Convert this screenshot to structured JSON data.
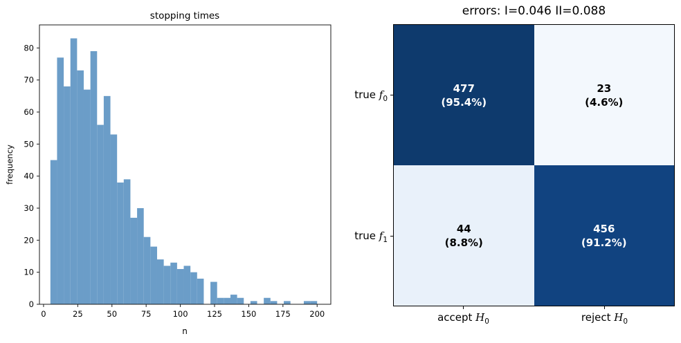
{
  "chart_data": [
    {
      "type": "bar",
      "subtype": "histogram",
      "title": "stopping times",
      "xlabel": "n",
      "ylabel": "frequency",
      "bar_color": "#6b9dc8",
      "xticks": [
        0,
        25,
        50,
        75,
        100,
        125,
        150,
        175,
        200
      ],
      "yticks": [
        0,
        10,
        20,
        30,
        40,
        50,
        60,
        70,
        80
      ],
      "xlim": [
        -3,
        210
      ],
      "ylim": [
        0,
        87.2
      ],
      "bins": {
        "start": 5,
        "width": 4.875,
        "counts": [
          45,
          77,
          68,
          83,
          73,
          67,
          79,
          56,
          65,
          53,
          38,
          39,
          27,
          30,
          21,
          18,
          14,
          12,
          13,
          11,
          12,
          10,
          8,
          0,
          7,
          2,
          2,
          3,
          2,
          0,
          1,
          0,
          2,
          1,
          0,
          1,
          0,
          0,
          1,
          1
        ]
      }
    },
    {
      "type": "heatmap",
      "title": "errors: I=0.046 II=0.088",
      "row_labels": [
        {
          "prefix": "true ",
          "symbol": "f",
          "subscript": "0"
        },
        {
          "prefix": "true ",
          "symbol": "f",
          "subscript": "1"
        }
      ],
      "col_labels": [
        {
          "prefix": "accept ",
          "symbol": "H",
          "subscript": "0"
        },
        {
          "prefix": "reject ",
          "symbol": "H",
          "subscript": "0"
        }
      ],
      "values": [
        [
          477,
          23
        ],
        [
          44,
          456
        ]
      ],
      "percent_labels": [
        [
          "(95.4%)",
          "(4.6%)"
        ],
        [
          "(8.8%)",
          "(91.2%)"
        ]
      ],
      "cell_colors": [
        [
          "#0e3a6d",
          "#f3f8fd"
        ],
        [
          "#e9f1fa",
          "#114380"
        ]
      ],
      "text_colors": [
        [
          "#ffffff",
          "#000000"
        ],
        [
          "#000000",
          "#ffffff"
        ]
      ],
      "legend": "none",
      "grid": false
    }
  ]
}
